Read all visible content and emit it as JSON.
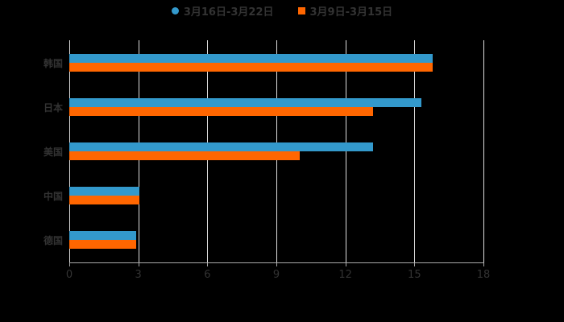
{
  "chart_data": {
    "type": "bar",
    "orientation": "horizontal",
    "title": "",
    "categories": [
      "韩国",
      "日本",
      "美国",
      "中国",
      "德国"
    ],
    "series": [
      {
        "name": "3月16日-3月22日",
        "color": "#3399cc",
        "values": [
          15.8,
          15.3,
          13.2,
          3.05,
          2.9
        ]
      },
      {
        "name": "3月9日-3月15日",
        "color": "#ff6600",
        "values": [
          15.8,
          13.2,
          10.0,
          3.05,
          2.9
        ]
      }
    ],
    "xlabel": "",
    "ylabel": "",
    "xlim": [
      0,
      18
    ],
    "xticks": [
      "0",
      "3",
      "6",
      "9",
      "12",
      "15",
      "18"
    ],
    "grid": true,
    "legend_position": "top"
  },
  "legend": {
    "items": [
      {
        "label": "3月16日-3月22日",
        "color": "#3399cc",
        "shape": "circle"
      },
      {
        "label": "3月9日-3月15日",
        "color": "#ff6600",
        "shape": "square"
      }
    ]
  }
}
